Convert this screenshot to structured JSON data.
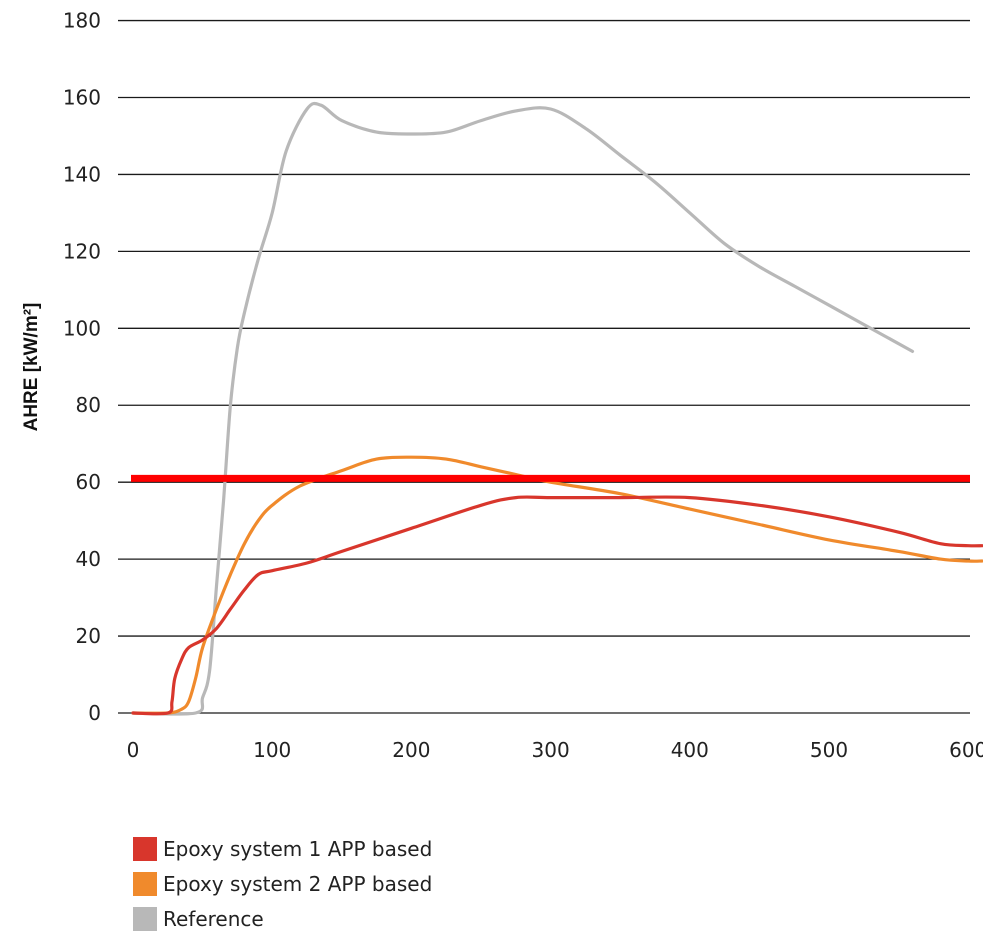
{
  "chart_data": {
    "type": "line",
    "title": "",
    "xlabel": "",
    "ylabel": "AHRE [kW/m²]",
    "xlim": [
      0,
      610
    ],
    "ylim": [
      0,
      180
    ],
    "x_ticks": [
      "0",
      "100",
      "200",
      "300",
      "400",
      "500",
      "600"
    ],
    "y_ticks": [
      "0",
      "20",
      "40",
      "60",
      "80",
      "100",
      "120",
      "140",
      "160",
      "180"
    ],
    "grid": "horizontal",
    "legend_position": "bottom-left",
    "reference_line": {
      "y": 61,
      "color": "#ff0000"
    },
    "series": [
      {
        "name": "Epoxy system 1 APP based",
        "color": "#d8362c",
        "points": [
          [
            0,
            0
          ],
          [
            25,
            0
          ],
          [
            28,
            3
          ],
          [
            30,
            9
          ],
          [
            35,
            14
          ],
          [
            40,
            17
          ],
          [
            50,
            19
          ],
          [
            60,
            22
          ],
          [
            70,
            27
          ],
          [
            80,
            32
          ],
          [
            90,
            36
          ],
          [
            100,
            37
          ],
          [
            125,
            39
          ],
          [
            150,
            42
          ],
          [
            200,
            48
          ],
          [
            250,
            54
          ],
          [
            275,
            56
          ],
          [
            300,
            56
          ],
          [
            350,
            56
          ],
          [
            400,
            56
          ],
          [
            450,
            54
          ],
          [
            500,
            51
          ],
          [
            550,
            47
          ],
          [
            580,
            44
          ],
          [
            600,
            43.5
          ],
          [
            610,
            43.5
          ]
        ]
      },
      {
        "name": "Epoxy system 2 APP based",
        "color": "#f08a2c",
        "points": [
          [
            0,
            0
          ],
          [
            25,
            0
          ],
          [
            35,
            1
          ],
          [
            40,
            3
          ],
          [
            45,
            9
          ],
          [
            50,
            17
          ],
          [
            60,
            27
          ],
          [
            70,
            36
          ],
          [
            80,
            44
          ],
          [
            90,
            50
          ],
          [
            100,
            54
          ],
          [
            120,
            59
          ],
          [
            150,
            63
          ],
          [
            175,
            66
          ],
          [
            200,
            66.5
          ],
          [
            225,
            66
          ],
          [
            250,
            64
          ],
          [
            275,
            62
          ],
          [
            300,
            60
          ],
          [
            350,
            57
          ],
          [
            400,
            53
          ],
          [
            450,
            49
          ],
          [
            500,
            45
          ],
          [
            550,
            42
          ],
          [
            580,
            40
          ],
          [
            600,
            39.5
          ],
          [
            610,
            39.5
          ]
        ]
      },
      {
        "name": "Reference",
        "color": "#b8b8b8",
        "points": [
          [
            0,
            0
          ],
          [
            45,
            0
          ],
          [
            50,
            4
          ],
          [
            55,
            11
          ],
          [
            60,
            33
          ],
          [
            65,
            55
          ],
          [
            70,
            80
          ],
          [
            75,
            95
          ],
          [
            80,
            104
          ],
          [
            90,
            118
          ],
          [
            100,
            130
          ],
          [
            110,
            146
          ],
          [
            125,
            157
          ],
          [
            135,
            158
          ],
          [
            150,
            154
          ],
          [
            175,
            151
          ],
          [
            200,
            150.5
          ],
          [
            225,
            151
          ],
          [
            250,
            154
          ],
          [
            275,
            156.5
          ],
          [
            300,
            157
          ],
          [
            325,
            152
          ],
          [
            350,
            145
          ],
          [
            375,
            138
          ],
          [
            400,
            130
          ],
          [
            425,
            122
          ],
          [
            450,
            116
          ],
          [
            475,
            111
          ],
          [
            500,
            106
          ],
          [
            525,
            101
          ],
          [
            560,
            94
          ]
        ]
      }
    ]
  }
}
